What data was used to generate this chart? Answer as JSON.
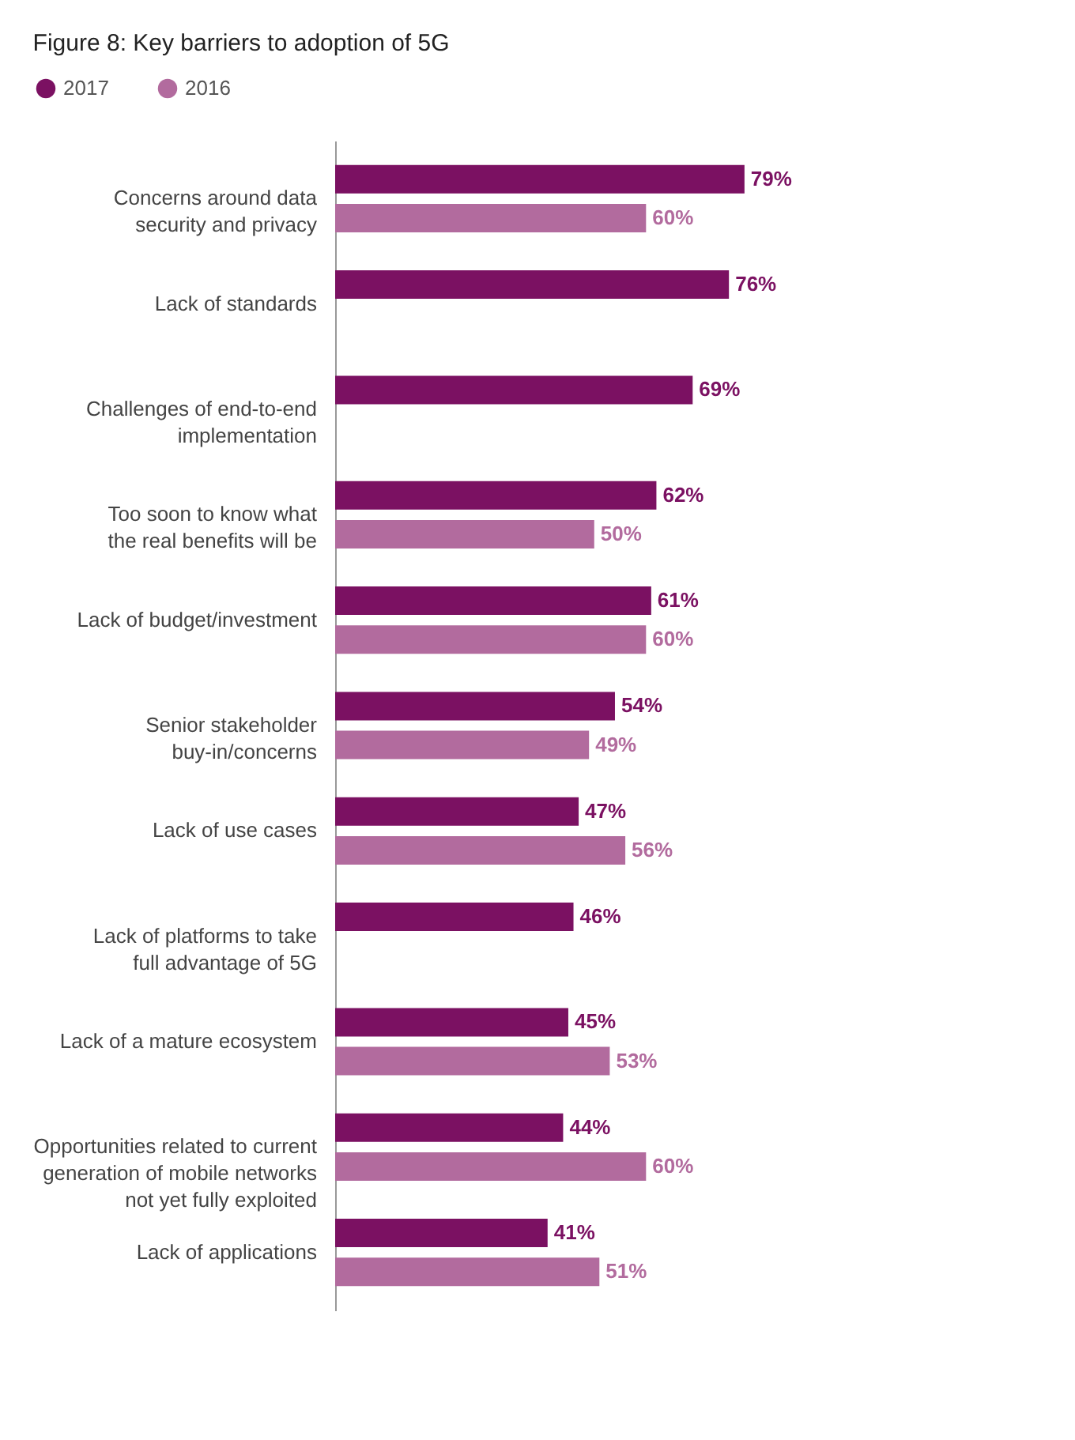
{
  "chart_data": {
    "type": "bar",
    "orientation": "horizontal",
    "title": "Figure 8: Key barriers to adoption of 5G",
    "categories": [
      "Concerns around data\nsecurity and privacy",
      "Lack of standards",
      "Challenges of end-to-end\nimplementation",
      "Too soon to know what\nthe real benefits will be",
      "Lack of budget/investment",
      "Senior stakeholder\nbuy-in/concerns",
      "Lack of use cases",
      "Lack of platforms to take\nfull advantage of 5G",
      "Lack of a mature ecosystem",
      "Opportunities related to current\ngeneration of mobile networks\nnot yet fully exploited",
      "Lack of applications"
    ],
    "series": [
      {
        "name": "2017",
        "color": "#7b1162",
        "values": [
          79,
          76,
          69,
          62,
          61,
          54,
          47,
          46,
          45,
          44,
          41
        ],
        "value_labels": [
          "79%",
          "76%",
          "69%",
          "62%",
          "61%",
          "54%",
          "47%",
          "46%",
          "45%",
          "44%",
          "41%"
        ]
      },
      {
        "name": "2016",
        "color": "#b26b9e",
        "values": [
          60,
          null,
          null,
          50,
          60,
          49,
          56,
          null,
          53,
          60,
          51
        ],
        "value_labels": [
          "60%",
          null,
          null,
          "50%",
          "60%",
          "49%",
          "56%",
          null,
          "53%",
          "60%",
          "51%"
        ]
      }
    ],
    "legend": "top left"
  }
}
